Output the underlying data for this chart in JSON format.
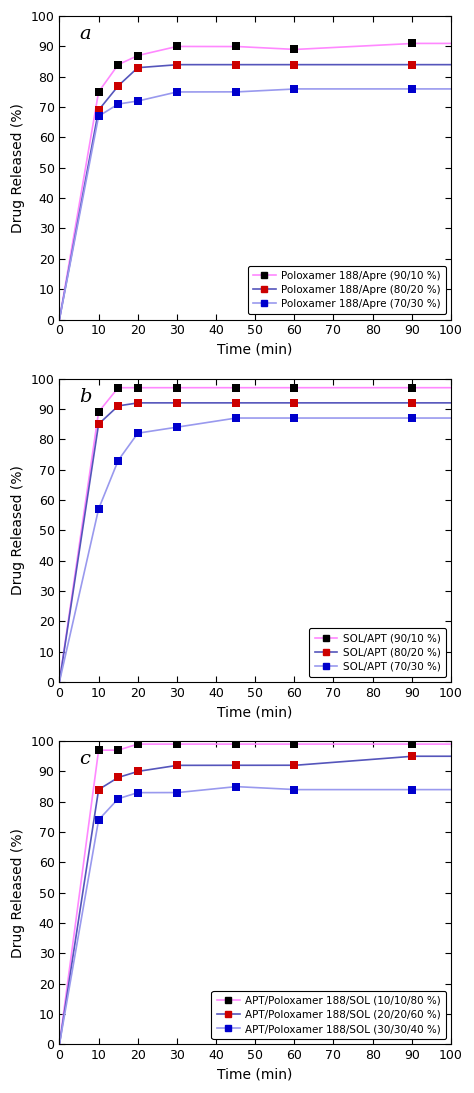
{
  "panel_a": {
    "label": "a",
    "xlabel": "Time (min)",
    "ylabel": "Drug Released (%)",
    "xlim": [
      0,
      100
    ],
    "ylim": [
      0,
      100
    ],
    "xticks": [
      0,
      10,
      20,
      30,
      40,
      50,
      60,
      70,
      80,
      90,
      100
    ],
    "yticks": [
      0,
      10,
      20,
      30,
      40,
      50,
      60,
      70,
      80,
      90,
      100
    ],
    "series": [
      {
        "label": "Poloxamer 188/Apre (90/10 %)",
        "marker_color": "#000000",
        "line_color": "#FF88FF",
        "x_data": [
          0,
          10,
          15,
          20,
          30,
          45,
          60,
          90
        ],
        "y_data": [
          0,
          75,
          84,
          87,
          90,
          90,
          89,
          91
        ]
      },
      {
        "label": "Poloxamer 188/Apre (80/20 %)",
        "marker_color": "#CC0000",
        "line_color": "#5555BB",
        "x_data": [
          0,
          10,
          15,
          20,
          30,
          45,
          60,
          90
        ],
        "y_data": [
          0,
          69,
          77,
          83,
          84,
          84,
          84,
          84
        ]
      },
      {
        "label": "Poloxamer 188/Apre (70/30 %)",
        "marker_color": "#0000CC",
        "line_color": "#9999EE",
        "x_data": [
          0,
          10,
          15,
          20,
          30,
          45,
          60,
          90
        ],
        "y_data": [
          0,
          67,
          71,
          72,
          75,
          75,
          76,
          76
        ]
      }
    ]
  },
  "panel_b": {
    "label": "b",
    "xlabel": "Time (min)",
    "ylabel": "Drug Released (%)",
    "xlim": [
      0,
      100
    ],
    "ylim": [
      0,
      100
    ],
    "xticks": [
      0,
      10,
      20,
      30,
      40,
      50,
      60,
      70,
      80,
      90,
      100
    ],
    "yticks": [
      0,
      10,
      20,
      30,
      40,
      50,
      60,
      70,
      80,
      90,
      100
    ],
    "series": [
      {
        "label": "SOL/APT (90/10 %)",
        "marker_color": "#000000",
        "line_color": "#FF88FF",
        "x_data": [
          0,
          10,
          15,
          20,
          30,
          45,
          60,
          90
        ],
        "y_data": [
          0,
          89,
          97,
          97,
          97,
          97,
          97,
          97
        ]
      },
      {
        "label": "SOL/APT (80/20 %)",
        "marker_color": "#CC0000",
        "line_color": "#5555BB",
        "x_data": [
          0,
          10,
          15,
          20,
          30,
          45,
          60,
          90
        ],
        "y_data": [
          0,
          85,
          91,
          92,
          92,
          92,
          92,
          92
        ]
      },
      {
        "label": "SOL/APT (70/30 %)",
        "marker_color": "#0000CC",
        "line_color": "#9999EE",
        "x_data": [
          0,
          10,
          15,
          20,
          30,
          45,
          60,
          90
        ],
        "y_data": [
          0,
          57,
          73,
          82,
          84,
          87,
          87,
          87
        ]
      }
    ]
  },
  "panel_c": {
    "label": "c",
    "xlabel": "Time (min)",
    "ylabel": "Drug Released (%)",
    "xlim": [
      0,
      100
    ],
    "ylim": [
      0,
      100
    ],
    "xticks": [
      0,
      10,
      20,
      30,
      40,
      50,
      60,
      70,
      80,
      90,
      100
    ],
    "yticks": [
      0,
      10,
      20,
      30,
      40,
      50,
      60,
      70,
      80,
      90,
      100
    ],
    "series": [
      {
        "label": "APT/Poloxamer 188/SOL (10/10/80 %)",
        "marker_color": "#000000",
        "line_color": "#FF88FF",
        "x_data": [
          0,
          10,
          15,
          20,
          30,
          45,
          60,
          90
        ],
        "y_data": [
          0,
          97,
          97,
          99,
          99,
          99,
          99,
          99
        ]
      },
      {
        "label": "APT/Poloxamer 188/SOL (20/20/60 %)",
        "marker_color": "#CC0000",
        "line_color": "#5555BB",
        "x_data": [
          0,
          10,
          15,
          20,
          30,
          45,
          60,
          90
        ],
        "y_data": [
          0,
          84,
          88,
          90,
          92,
          92,
          92,
          95
        ]
      },
      {
        "label": "APT/Poloxamer 188/SOL (30/30/40 %)",
        "marker_color": "#0000CC",
        "line_color": "#9999EE",
        "x_data": [
          0,
          10,
          15,
          20,
          30,
          45,
          60,
          90
        ],
        "y_data": [
          0,
          74,
          81,
          83,
          83,
          85,
          84,
          84
        ]
      }
    ]
  },
  "figure_bg": "#FFFFFF",
  "axes_bg": "#FFFFFF",
  "marker_size": 30,
  "line_width": 1.2
}
